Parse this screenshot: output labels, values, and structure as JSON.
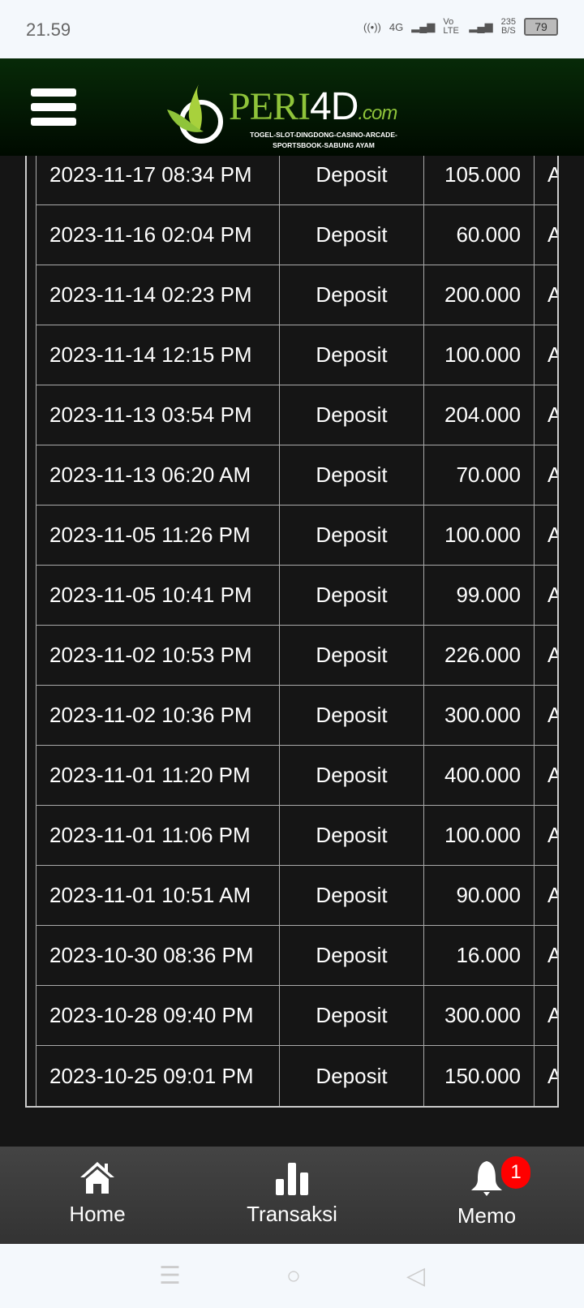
{
  "status_bar": {
    "time": "21.59",
    "network": "4G",
    "volte": "Vo LTE",
    "speed": "235",
    "speed_unit": "B/S",
    "battery": "79"
  },
  "header": {
    "logo_text": "PERI",
    "logo_text_accent": "4D",
    "logo_suffix": ".com",
    "logo_tagline": "TOGEL-SLOT-DINGDONG-CASINO-ARCADE-SPORTSBOOK-SABUNG AYAM"
  },
  "transactions": [
    {
      "date": "2023-11-17 08:34 PM",
      "type": "Deposit",
      "amount": "105.000",
      "status": "A"
    },
    {
      "date": "2023-11-16 02:04 PM",
      "type": "Deposit",
      "amount": "60.000",
      "status": "A"
    },
    {
      "date": "2023-11-14 02:23 PM",
      "type": "Deposit",
      "amount": "200.000",
      "status": "A"
    },
    {
      "date": "2023-11-14 12:15 PM",
      "type": "Deposit",
      "amount": "100.000",
      "status": "A"
    },
    {
      "date": "2023-11-13 03:54 PM",
      "type": "Deposit",
      "amount": "204.000",
      "status": "A"
    },
    {
      "date": "2023-11-13 06:20 AM",
      "type": "Deposit",
      "amount": "70.000",
      "status": "A"
    },
    {
      "date": "2023-11-05 11:26 PM",
      "type": "Deposit",
      "amount": "100.000",
      "status": "A"
    },
    {
      "date": "2023-11-05 10:41 PM",
      "type": "Deposit",
      "amount": "99.000",
      "status": "A"
    },
    {
      "date": "2023-11-02 10:53 PM",
      "type": "Deposit",
      "amount": "226.000",
      "status": "A"
    },
    {
      "date": "2023-11-02 10:36 PM",
      "type": "Deposit",
      "amount": "300.000",
      "status": "A"
    },
    {
      "date": "2023-11-01 11:20 PM",
      "type": "Deposit",
      "amount": "400.000",
      "status": "A"
    },
    {
      "date": "2023-11-01 11:06 PM",
      "type": "Deposit",
      "amount": "100.000",
      "status": "A"
    },
    {
      "date": "2023-11-01 10:51 AM",
      "type": "Deposit",
      "amount": "90.000",
      "status": "A"
    },
    {
      "date": "2023-10-30 08:36 PM",
      "type": "Deposit",
      "amount": "16.000",
      "status": "A"
    },
    {
      "date": "2023-10-28 09:40 PM",
      "type": "Deposit",
      "amount": "300.000",
      "status": "A"
    },
    {
      "date": "2023-10-25 09:01 PM",
      "type": "Deposit",
      "amount": "150.000",
      "status": "A"
    }
  ],
  "bottom_nav": {
    "items": [
      {
        "label": "Home",
        "icon": "home-icon"
      },
      {
        "label": "Transaksi",
        "icon": "bar-chart-icon"
      },
      {
        "label": "Memo",
        "icon": "bell-icon"
      }
    ],
    "memo_badge": "1",
    "badge_color": "#ff0000"
  },
  "system_nav": {
    "icons": [
      "menu-icon",
      "home-circle-icon",
      "back-icon"
    ]
  }
}
